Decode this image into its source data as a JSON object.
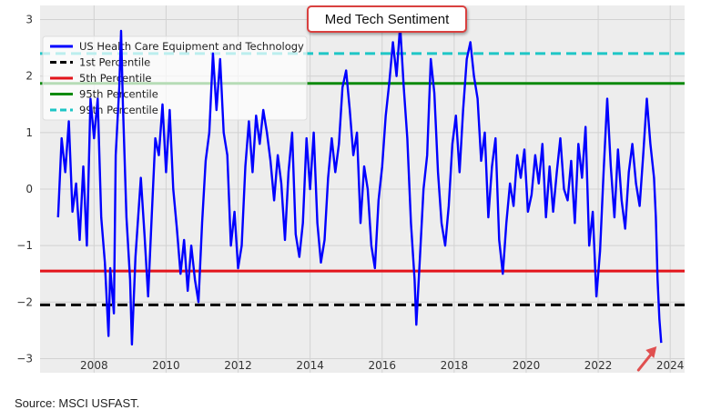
{
  "source_note": "Source: MSCI USFAST.",
  "chart_data": {
    "type": "line",
    "title": "Med Tech Sentiment",
    "xlabel": "",
    "ylabel": "",
    "xlim": [
      2006.5,
      2024.4
    ],
    "ylim": [
      -3.25,
      3.25
    ],
    "x_ticks": [
      2008,
      2010,
      2012,
      2014,
      2016,
      2018,
      2020,
      2022,
      2024
    ],
    "y_ticks": [
      -3,
      -2,
      -1,
      0,
      1,
      2,
      3
    ],
    "grid": true,
    "legend_position": "top-left",
    "series": [
      {
        "name": "US Health Care Equipment and Technology",
        "color": "#0000ff",
        "points": [
          [
            2007.0,
            -0.5
          ],
          [
            2007.1,
            0.9
          ],
          [
            2007.2,
            0.3
          ],
          [
            2007.3,
            1.2
          ],
          [
            2007.4,
            -0.4
          ],
          [
            2007.5,
            0.1
          ],
          [
            2007.6,
            -0.9
          ],
          [
            2007.7,
            0.4
          ],
          [
            2007.8,
            -1.0
          ],
          [
            2007.9,
            1.6
          ],
          [
            2008.0,
            0.9
          ],
          [
            2008.1,
            1.6
          ],
          [
            2008.2,
            -0.5
          ],
          [
            2008.3,
            -1.3
          ],
          [
            2008.4,
            -2.6
          ],
          [
            2008.45,
            -1.4
          ],
          [
            2008.55,
            -2.2
          ],
          [
            2008.6,
            0.6
          ],
          [
            2008.7,
            1.8
          ],
          [
            2008.75,
            2.8
          ],
          [
            2008.8,
            1.5
          ],
          [
            2008.9,
            -0.5
          ],
          [
            2009.0,
            -1.6
          ],
          [
            2009.05,
            -2.75
          ],
          [
            2009.15,
            -1.2
          ],
          [
            2009.3,
            0.2
          ],
          [
            2009.4,
            -0.8
          ],
          [
            2009.5,
            -1.9
          ],
          [
            2009.6,
            -0.5
          ],
          [
            2009.7,
            0.9
          ],
          [
            2009.8,
            0.6
          ],
          [
            2009.9,
            1.5
          ],
          [
            2010.0,
            0.3
          ],
          [
            2010.1,
            1.4
          ],
          [
            2010.2,
            0.0
          ],
          [
            2010.3,
            -0.7
          ],
          [
            2010.4,
            -1.5
          ],
          [
            2010.5,
            -0.9
          ],
          [
            2010.6,
            -1.8
          ],
          [
            2010.7,
            -1.0
          ],
          [
            2010.8,
            -1.6
          ],
          [
            2010.9,
            -2.0
          ],
          [
            2011.0,
            -0.6
          ],
          [
            2011.1,
            0.5
          ],
          [
            2011.2,
            1.0
          ],
          [
            2011.3,
            2.4
          ],
          [
            2011.4,
            1.4
          ],
          [
            2011.5,
            2.3
          ],
          [
            2011.6,
            1.0
          ],
          [
            2011.7,
            0.6
          ],
          [
            2011.8,
            -1.0
          ],
          [
            2011.9,
            -0.4
          ],
          [
            2012.0,
            -1.4
          ],
          [
            2012.1,
            -1.0
          ],
          [
            2012.2,
            0.4
          ],
          [
            2012.3,
            1.2
          ],
          [
            2012.4,
            0.3
          ],
          [
            2012.5,
            1.3
          ],
          [
            2012.6,
            0.8
          ],
          [
            2012.7,
            1.4
          ],
          [
            2012.8,
            1.0
          ],
          [
            2012.9,
            0.5
          ],
          [
            2013.0,
            -0.2
          ],
          [
            2013.1,
            0.6
          ],
          [
            2013.2,
            0.1
          ],
          [
            2013.3,
            -0.9
          ],
          [
            2013.4,
            0.3
          ],
          [
            2013.5,
            1.0
          ],
          [
            2013.6,
            -0.8
          ],
          [
            2013.7,
            -1.2
          ],
          [
            2013.8,
            -0.6
          ],
          [
            2013.9,
            0.9
          ],
          [
            2014.0,
            0.0
          ],
          [
            2014.1,
            1.0
          ],
          [
            2014.2,
            -0.6
          ],
          [
            2014.3,
            -1.3
          ],
          [
            2014.4,
            -0.9
          ],
          [
            2014.5,
            0.2
          ],
          [
            2014.6,
            0.9
          ],
          [
            2014.7,
            0.3
          ],
          [
            2014.8,
            0.8
          ],
          [
            2014.9,
            1.8
          ],
          [
            2015.0,
            2.1
          ],
          [
            2015.1,
            1.4
          ],
          [
            2015.2,
            0.6
          ],
          [
            2015.3,
            1.0
          ],
          [
            2015.4,
            -0.6
          ],
          [
            2015.5,
            0.4
          ],
          [
            2015.6,
            0.0
          ],
          [
            2015.7,
            -1.0
          ],
          [
            2015.8,
            -1.4
          ],
          [
            2015.9,
            -0.2
          ],
          [
            2016.0,
            0.4
          ],
          [
            2016.1,
            1.3
          ],
          [
            2016.2,
            1.9
          ],
          [
            2016.3,
            2.6
          ],
          [
            2016.4,
            2.0
          ],
          [
            2016.5,
            2.9
          ],
          [
            2016.6,
            1.8
          ],
          [
            2016.7,
            0.9
          ],
          [
            2016.8,
            -0.6
          ],
          [
            2016.9,
            -1.6
          ],
          [
            2016.95,
            -2.4
          ],
          [
            2017.05,
            -1.2
          ],
          [
            2017.15,
            0.0
          ],
          [
            2017.25,
            0.6
          ],
          [
            2017.35,
            2.3
          ],
          [
            2017.45,
            1.7
          ],
          [
            2017.55,
            0.3
          ],
          [
            2017.65,
            -0.6
          ],
          [
            2017.75,
            -1.0
          ],
          [
            2017.85,
            -0.3
          ],
          [
            2017.95,
            0.8
          ],
          [
            2018.05,
            1.3
          ],
          [
            2018.15,
            0.3
          ],
          [
            2018.25,
            1.4
          ],
          [
            2018.35,
            2.3
          ],
          [
            2018.45,
            2.6
          ],
          [
            2018.55,
            2.0
          ],
          [
            2018.65,
            1.6
          ],
          [
            2018.75,
            0.5
          ],
          [
            2018.85,
            1.0
          ],
          [
            2018.95,
            -0.5
          ],
          [
            2019.05,
            0.4
          ],
          [
            2019.15,
            0.9
          ],
          [
            2019.25,
            -0.9
          ],
          [
            2019.35,
            -1.5
          ],
          [
            2019.45,
            -0.6
          ],
          [
            2019.55,
            0.1
          ],
          [
            2019.65,
            -0.3
          ],
          [
            2019.75,
            0.6
          ],
          [
            2019.85,
            0.2
          ],
          [
            2019.95,
            0.7
          ],
          [
            2020.05,
            -0.4
          ],
          [
            2020.15,
            -0.1
          ],
          [
            2020.25,
            0.6
          ],
          [
            2020.35,
            0.1
          ],
          [
            2020.45,
            0.8
          ],
          [
            2020.55,
            -0.5
          ],
          [
            2020.65,
            0.4
          ],
          [
            2020.75,
            -0.4
          ],
          [
            2020.85,
            0.3
          ],
          [
            2020.95,
            0.9
          ],
          [
            2021.05,
            0.0
          ],
          [
            2021.15,
            -0.2
          ],
          [
            2021.25,
            0.5
          ],
          [
            2021.35,
            -0.6
          ],
          [
            2021.45,
            0.8
          ],
          [
            2021.55,
            0.2
          ],
          [
            2021.65,
            1.1
          ],
          [
            2021.75,
            -1.0
          ],
          [
            2021.85,
            -0.4
          ],
          [
            2021.95,
            -1.9
          ],
          [
            2022.05,
            -1.1
          ],
          [
            2022.15,
            0.3
          ],
          [
            2022.25,
            1.6
          ],
          [
            2022.35,
            0.4
          ],
          [
            2022.45,
            -0.5
          ],
          [
            2022.55,
            0.7
          ],
          [
            2022.65,
            -0.2
          ],
          [
            2022.75,
            -0.7
          ],
          [
            2022.85,
            0.3
          ],
          [
            2022.95,
            0.8
          ],
          [
            2023.05,
            0.1
          ],
          [
            2023.15,
            -0.3
          ],
          [
            2023.25,
            0.6
          ],
          [
            2023.35,
            1.6
          ],
          [
            2023.45,
            0.8
          ],
          [
            2023.55,
            0.2
          ],
          [
            2023.6,
            -0.5
          ],
          [
            2023.65,
            -1.6
          ],
          [
            2023.7,
            -2.3
          ],
          [
            2023.75,
            -2.72
          ]
        ]
      },
      {
        "name": "1st Percentile",
        "value": -2.05,
        "color": "#000000",
        "style": "dashed"
      },
      {
        "name": "5th Percentile",
        "value": -1.45,
        "color": "#e3141b",
        "style": "solid"
      },
      {
        "name": "95th Percentile",
        "value": 1.87,
        "color": "#0d8a0d",
        "style": "solid"
      },
      {
        "name": "99th Percentile",
        "value": 2.4,
        "color": "#1ec6c6",
        "style": "dashed"
      }
    ],
    "annotation": {
      "type": "arrow",
      "x": 2023.75,
      "y": -2.72,
      "color": "#e05050"
    }
  }
}
